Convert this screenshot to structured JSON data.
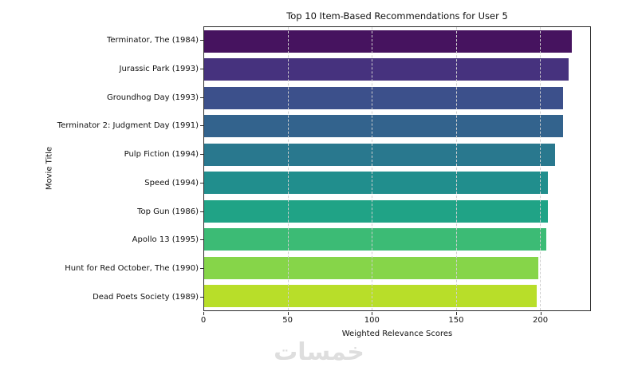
{
  "watermark": "خمسات",
  "chart_data": {
    "type": "bar",
    "orientation": "horizontal",
    "title": "Top 10 Item-Based Recommendations for User 5",
    "xlabel": "Weighted Relevance Scores",
    "ylabel": "Movie Title",
    "xlim": [
      0,
      230
    ],
    "xticks": [
      0,
      50,
      100,
      150,
      200
    ],
    "grid": "vertical-dashed",
    "legend": "none",
    "categories": [
      "Terminator, The (1984)",
      "Jurassic Park (1993)",
      "Groundhog Day (1993)",
      "Terminator 2: Judgment Day (1991)",
      "Pulp Fiction (1994)",
      "Speed (1994)",
      "Top Gun (1986)",
      "Apollo 13 (1995)",
      "Hunt for Red October, The (1990)",
      "Dead Poets Society (1989)"
    ],
    "values": [
      219,
      217,
      214,
      214,
      209,
      205,
      205,
      204,
      199,
      198
    ],
    "colors": [
      "#46135f",
      "#46327e",
      "#3c508b",
      "#33638d",
      "#29788e",
      "#218e8d",
      "#20a386",
      "#3cbb75",
      "#86d549",
      "#b8de29"
    ]
  }
}
